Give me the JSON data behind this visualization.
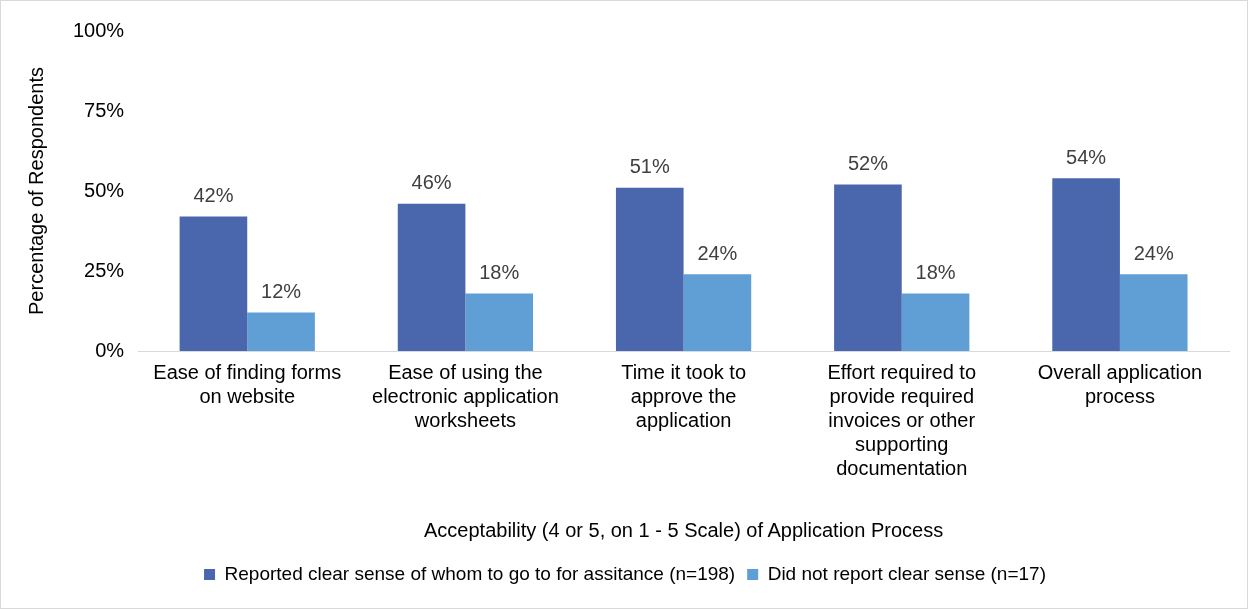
{
  "chart_data": {
    "type": "bar",
    "xlabel": "Acceptability (4 or 5, on 1 - 5 Scale) of Application Process",
    "ylabel": "Percentage of Respondents",
    "categories": [
      "Ease of finding forms on website",
      "Ease of using the electronic application worksheets",
      "Time it took to approve the application",
      "Effort required to provide required invoices or other supporting documentation",
      "Overall application process"
    ],
    "series": [
      {
        "name": "Reported clear sense of whom to go to for assitance (n=198)",
        "color": "#4a66ac",
        "values": [
          42,
          46,
          51,
          52,
          54
        ]
      },
      {
        "name": "Did not report clear sense (n=17)",
        "color": "#5f9fd5",
        "values": [
          12,
          18,
          24,
          18,
          24
        ]
      }
    ],
    "ylim": [
      0,
      100
    ],
    "yticks": [
      {
        "value": 0,
        "label": "0%"
      },
      {
        "value": 25,
        "label": "25%"
      },
      {
        "value": 50,
        "label": "50%"
      },
      {
        "value": 75,
        "label": "75%"
      },
      {
        "value": 100,
        "label": "100%"
      }
    ],
    "value_labels": [
      [
        "42%",
        "46%",
        "51%",
        "52%",
        "54%"
      ],
      [
        "12%",
        "18%",
        "24%",
        "18%",
        "24%"
      ]
    ],
    "grid": false,
    "legend": "bottom"
  }
}
